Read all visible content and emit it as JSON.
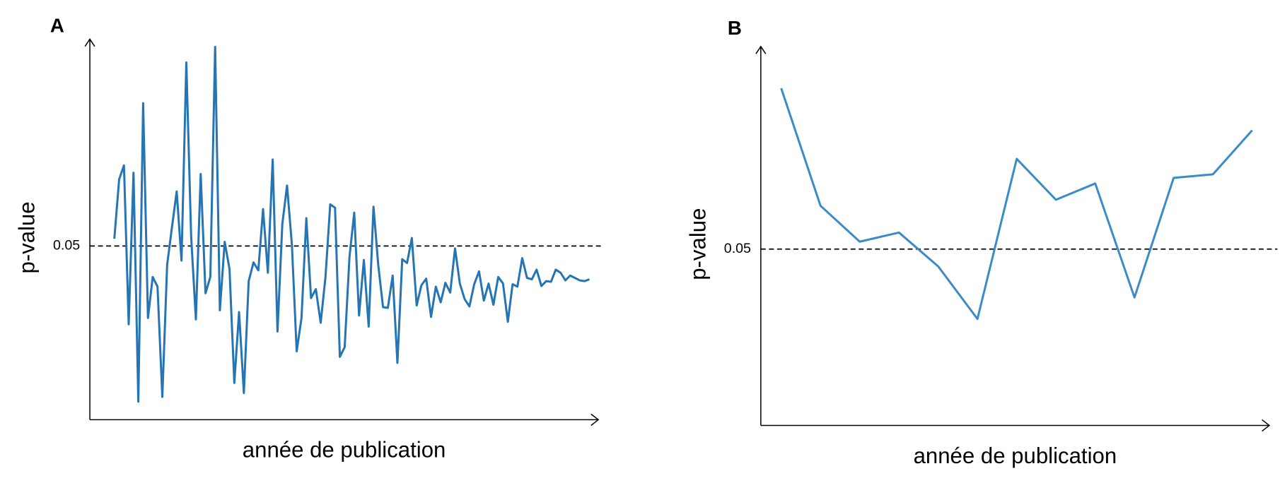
{
  "chart_data": [
    {
      "type": "line",
      "panel_label": "A",
      "y_label": "p-value",
      "x_label": "année de publication",
      "ylim": [
        0,
        0.11
      ],
      "yticks": [
        0.05
      ],
      "grid_style": "dashed",
      "series": [
        {
          "color": "#2574b4",
          "values": [
            0.0521,
            0.0692,
            0.0732,
            0.0275,
            0.0711,
            0.0052,
            0.0911,
            0.0293,
            0.0411,
            0.0383,
            0.0066,
            0.0446,
            0.0552,
            0.0657,
            0.0458,
            0.1028,
            0.0528,
            0.0289,
            0.0707,
            0.0364,
            0.0411,
            0.1073,
            0.0315,
            0.0512,
            0.0434,
            0.0106,
            0.031,
            0.0077,
            0.0399,
            0.0453,
            0.043,
            0.0606,
            0.0423,
            0.0749,
            0.0254,
            0.0563,
            0.0674,
            0.0505,
            0.0197,
            0.0293,
            0.058,
            0.035,
            0.0376,
            0.0279,
            0.0411,
            0.062,
            0.061,
            0.0181,
            0.0209,
            0.0469,
            0.0596,
            0.03,
            0.046,
            0.0268,
            0.0613,
            0.0446,
            0.0324,
            0.0322,
            0.0415,
            0.0164,
            0.0462,
            0.0451,
            0.0523,
            0.0329,
            0.0387,
            0.0406,
            0.0296,
            0.0383,
            0.0338,
            0.0394,
            0.0366,
            0.0493,
            0.0392,
            0.0347,
            0.0326,
            0.039,
            0.0427,
            0.0343,
            0.0392,
            0.0331,
            0.0411,
            0.0392,
            0.0282,
            0.039,
            0.0383,
            0.0465,
            0.0408,
            0.0404,
            0.0432,
            0.0385,
            0.0399,
            0.0397,
            0.0432,
            0.0423,
            0.0401,
            0.0415,
            0.0408,
            0.0401,
            0.0399,
            0.0404
          ]
        }
      ]
    },
    {
      "type": "line",
      "panel_label": "B",
      "y_label": "p-value",
      "x_label": "année de publication",
      "ylim": [
        0,
        0.11
      ],
      "yticks": [
        0.05
      ],
      "grid_style": "dashed",
      "series": [
        {
          "color": "#3b8bc6",
          "values": [
            0.0956,
            0.0623,
            0.0521,
            0.0547,
            0.0451,
            0.0302,
            0.0756,
            0.064,
            0.0686,
            0.0363,
            0.0702,
            0.0712,
            0.0837
          ]
        }
      ]
    }
  ]
}
